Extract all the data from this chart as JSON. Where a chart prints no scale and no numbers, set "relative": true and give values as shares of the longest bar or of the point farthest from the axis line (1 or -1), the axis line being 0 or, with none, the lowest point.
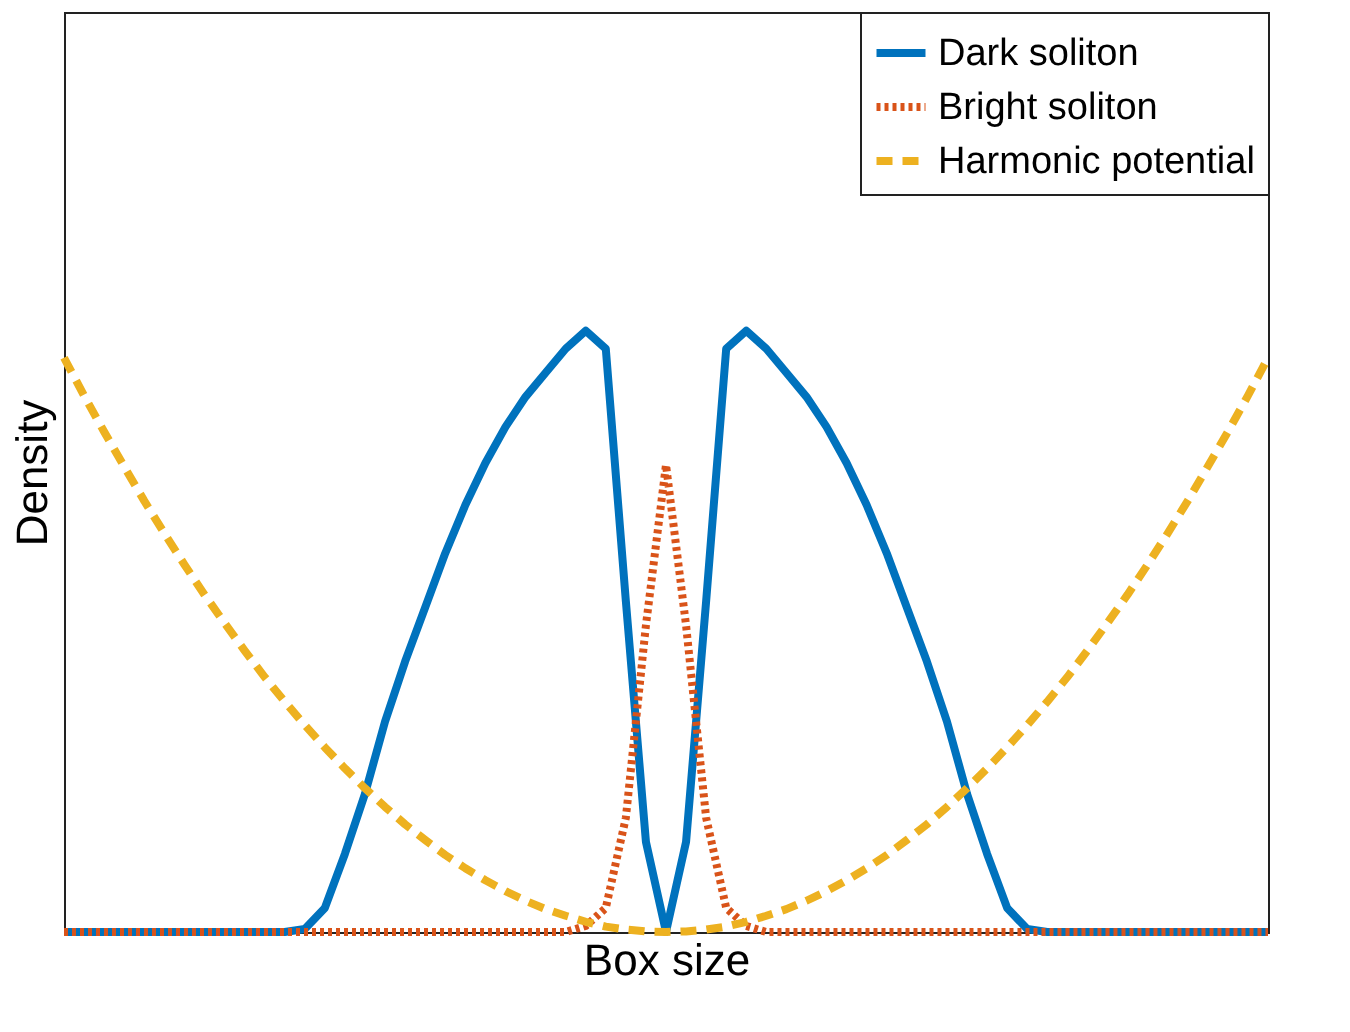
{
  "chart_data": {
    "type": "line",
    "relative": true,
    "xlabel": "Box size",
    "ylabel": "Density",
    "legend": "top right",
    "tick_labels": false,
    "grid": false,
    "categories": [
      null,
      null,
      null,
      null,
      null,
      null,
      null,
      null,
      null,
      null,
      null,
      null,
      null,
      null,
      null,
      null,
      null,
      null,
      null,
      null,
      null,
      null,
      null,
      null,
      null,
      null,
      null,
      null,
      null,
      null,
      null,
      null,
      null,
      null,
      null,
      null,
      null,
      null,
      null,
      null,
      null,
      null,
      null,
      null,
      null,
      null,
      null,
      null,
      null,
      null,
      null,
      null,
      null,
      null,
      null,
      null,
      null,
      null,
      null,
      null,
      null
    ],
    "series": [
      {
        "name": "Dark soliton",
        "color": "#0072bd",
        "line_style": "solid",
        "values": [
          0,
          0,
          0,
          0,
          0,
          0,
          0,
          0,
          0,
          0,
          0,
          0,
          0.005,
          0.04,
          0.13,
          0.23,
          0.35,
          0.45,
          0.54,
          0.63,
          0.71,
          0.78,
          0.84,
          0.89,
          0.93,
          0.97,
          1.0,
          0.97,
          0.55,
          0.15,
          0,
          0.15,
          0.55,
          0.97,
          1.0,
          0.97,
          0.93,
          0.89,
          0.84,
          0.78,
          0.71,
          0.63,
          0.54,
          0.45,
          0.35,
          0.23,
          0.13,
          0.04,
          0.005,
          0,
          0,
          0,
          0,
          0,
          0,
          0,
          0,
          0,
          0,
          0,
          0
        ]
      },
      {
        "name": "Bright soliton",
        "color": "#d95319",
        "line_style": "dotted",
        "values": [
          0,
          0,
          0,
          0,
          0,
          0,
          0,
          0,
          0,
          0,
          0,
          0,
          0,
          0,
          0,
          0,
          0,
          0,
          0,
          0,
          0,
          0,
          0,
          0,
          0,
          0,
          0.01,
          0.04,
          0.19,
          0.51,
          0.777,
          0.51,
          0.19,
          0.04,
          0.01,
          0,
          0,
          0,
          0,
          0,
          0,
          0,
          0,
          0,
          0,
          0,
          0,
          0,
          0,
          0,
          0,
          0,
          0,
          0,
          0,
          0,
          0,
          0,
          0,
          0,
          0
        ]
      },
      {
        "name": "Harmonic potential",
        "color": "#edb120",
        "line_style": "dashed",
        "values": [
          0.955,
          0.892,
          0.832,
          0.774,
          0.717,
          0.663,
          0.611,
          0.561,
          0.514,
          0.468,
          0.424,
          0.383,
          0.344,
          0.307,
          0.272,
          0.239,
          0.208,
          0.179,
          0.153,
          0.128,
          0.106,
          0.086,
          0.068,
          0.052,
          0.038,
          0.027,
          0.017,
          0.009,
          0.004,
          0.001,
          0,
          0.001,
          0.004,
          0.009,
          0.017,
          0.027,
          0.038,
          0.052,
          0.068,
          0.086,
          0.106,
          0.128,
          0.153,
          0.179,
          0.208,
          0.239,
          0.272,
          0.307,
          0.344,
          0.383,
          0.424,
          0.468,
          0.514,
          0.561,
          0.611,
          0.663,
          0.717,
          0.774,
          0.832,
          0.892,
          0.955
        ]
      }
    ]
  }
}
